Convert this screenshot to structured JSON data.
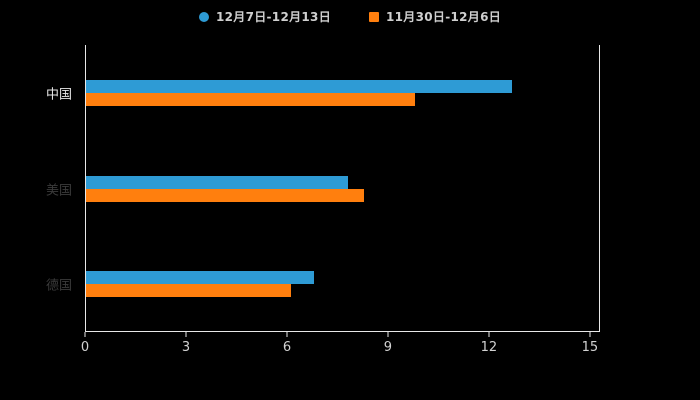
{
  "chart_data": {
    "type": "bar",
    "orientation": "horizontal",
    "title": "",
    "categories": [
      "中国",
      "美国",
      "德国"
    ],
    "category_label_colors": [
      "#e6e6e6",
      "#3b3b3b",
      "#3b3b3b"
    ],
    "series": [
      {
        "name": "12月7日-12月13日",
        "color": "#2E9BD5",
        "marker": "circle",
        "values": [
          12.7,
          7.8,
          6.8
        ]
      },
      {
        "name": "11月30日-12月6日",
        "color": "#FF7F0E",
        "marker": "square",
        "values": [
          9.8,
          8.3,
          6.1
        ]
      }
    ],
    "x_ticks": [
      0,
      3,
      6,
      9,
      12,
      15
    ],
    "xlim": [
      0,
      15.3
    ],
    "background_color": "#000000",
    "axis_color": "#e8e8e8",
    "tick_label_color": "#d2d2d2",
    "legend_position": "top",
    "grid": false
  }
}
